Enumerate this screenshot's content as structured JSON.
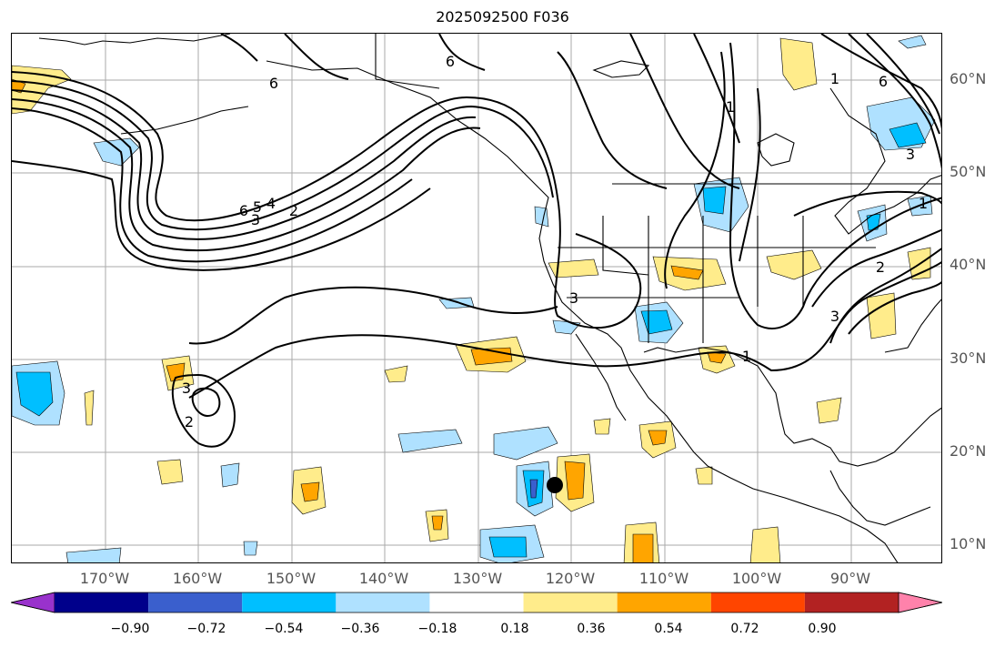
{
  "title": "2025092500 F036",
  "lat_labels": [
    "60°N",
    "50°N",
    "40°N",
    "30°N",
    "20°N",
    "10°N"
  ],
  "lon_labels": [
    "170°W",
    "160°W",
    "150°W",
    "140°W",
    "130°W",
    "120°W",
    "110°W",
    "100°W",
    "90°W"
  ],
  "contour_labels": [
    "6",
    "6",
    "6",
    "6",
    "5",
    "4",
    "3",
    "2",
    "3",
    "3",
    "3",
    "2",
    "2",
    "1",
    "1",
    "1",
    "3",
    "1"
  ],
  "colorbar": {
    "ticks": [
      "−0.90",
      "−0.72",
      "−0.54",
      "−0.36",
      "−0.18",
      "0.18",
      "0.36",
      "0.54",
      "0.72",
      "0.90"
    ],
    "colors": [
      "#9932cc",
      "#00008b",
      "#3a5fcd",
      "#00bfff",
      "#afe1ff",
      "#ffffff",
      "#ffec8b",
      "#ffa500",
      "#ff4500",
      "#b22222",
      "#ff82ab"
    ]
  },
  "colors": {
    "contour": "#000000",
    "gridline": "#aaaaaa",
    "coastline": "#000000"
  }
}
